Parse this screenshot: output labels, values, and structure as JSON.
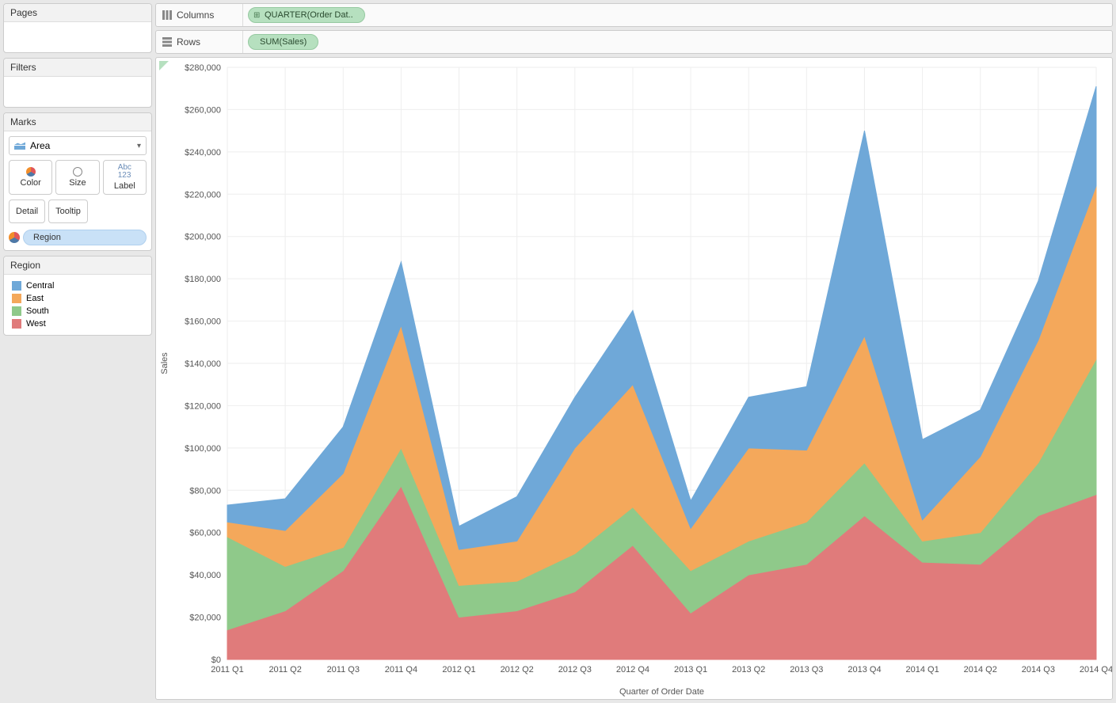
{
  "sidebar": {
    "pages": {
      "title": "Pages"
    },
    "filters": {
      "title": "Filters"
    },
    "marks": {
      "title": "Marks",
      "type": "Area",
      "buttons": [
        {
          "label": "Color",
          "icon": "color-icon"
        },
        {
          "label": "Size",
          "icon": "size-icon"
        },
        {
          "label": "Label",
          "icon": "label-icon"
        }
      ],
      "buttons2": [
        {
          "label": "Detail"
        },
        {
          "label": "Tooltip"
        }
      ],
      "color_pill": "Region"
    },
    "legend": {
      "title": "Region",
      "items": [
        {
          "label": "Central",
          "color": "#6fa8d8"
        },
        {
          "label": "East",
          "color": "#f4a85b"
        },
        {
          "label": "South",
          "color": "#8fc98a"
        },
        {
          "label": "West",
          "color": "#e07b7b"
        }
      ]
    }
  },
  "shelves": {
    "columns": {
      "label": "Columns",
      "pill": "QUARTER(Order Dat..",
      "has_plus": true
    },
    "rows": {
      "label": "Rows",
      "pill": "SUM(Sales)",
      "has_plus": false
    }
  },
  "chart": {
    "type": "stacked-area",
    "ylabel": "Sales",
    "xlabel": "Quarter of Order Date",
    "ylim": [
      0,
      280000
    ],
    "ytick_step": 20000,
    "ytick_format": "$#,###",
    "background_color": "#ffffff",
    "grid_color": "#eeeeee",
    "axis_font_size": 11,
    "categories": [
      "2011 Q1",
      "2011 Q2",
      "2011 Q3",
      "2011 Q4",
      "2012 Q1",
      "2012 Q2",
      "2012 Q3",
      "2012 Q4",
      "2013 Q1",
      "2013 Q2",
      "2013 Q3",
      "2013 Q4",
      "2014 Q1",
      "2014 Q2",
      "2014 Q3",
      "2014 Q4"
    ],
    "series": [
      {
        "name": "West",
        "color": "#e07b7b",
        "values": [
          14000,
          23000,
          42000,
          82000,
          20000,
          23000,
          32000,
          54000,
          22000,
          40000,
          45000,
          68000,
          46000,
          45000,
          68000,
          78000
        ]
      },
      {
        "name": "South",
        "color": "#8fc98a",
        "values": [
          44000,
          21000,
          11000,
          18000,
          15000,
          14000,
          18000,
          18000,
          20000,
          16000,
          20000,
          25000,
          10000,
          15000,
          25000,
          64000
        ]
      },
      {
        "name": "East",
        "color": "#f4a85b",
        "values": [
          7000,
          17000,
          35000,
          58000,
          17000,
          19000,
          50000,
          58000,
          20000,
          44000,
          34000,
          60000,
          10000,
          36000,
          58000,
          82000
        ]
      },
      {
        "name": "Central",
        "color": "#6fa8d8",
        "values": [
          8000,
          15000,
          22000,
          30000,
          11000,
          21000,
          24000,
          35000,
          13000,
          24000,
          30000,
          97000,
          38000,
          22000,
          28000,
          47000
        ]
      }
    ]
  }
}
